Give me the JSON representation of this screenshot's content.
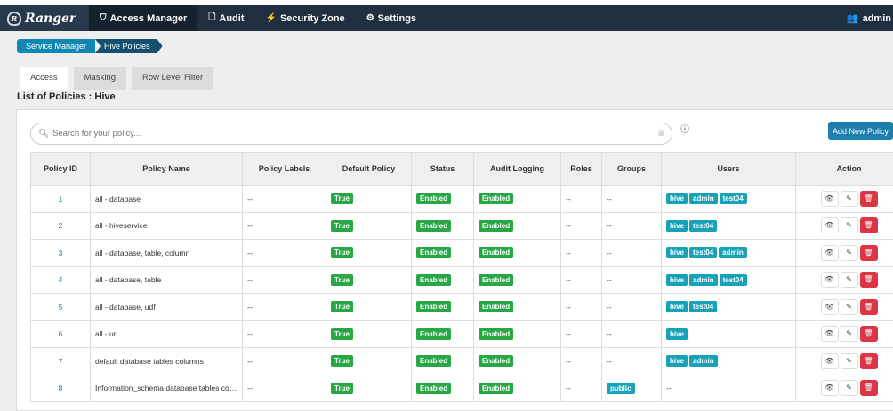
{
  "nav": {
    "brand": "Ranger",
    "items": [
      {
        "label": "Access Manager",
        "icon": "shield-icon",
        "active": true
      },
      {
        "label": "Audit",
        "icon": "file-icon"
      },
      {
        "label": "Security Zone",
        "icon": "bolt-icon"
      },
      {
        "label": "Settings",
        "icon": "gear-icon"
      }
    ],
    "user": "admin"
  },
  "breadcrumb": [
    "Service Manager",
    "Hive Policies"
  ],
  "tabs": [
    "Access",
    "Masking",
    "Row Level Filter"
  ],
  "page_title": "List of Policies : Hive",
  "search": {
    "placeholder": "Search for your policy..."
  },
  "add_button": "Add New Policy",
  "columns": [
    "Policy ID",
    "Policy Name",
    "Policy Labels",
    "Default Policy",
    "Status",
    "Audit Logging",
    "Roles",
    "Groups",
    "Users",
    "Action"
  ],
  "rows": [
    {
      "id": "1",
      "name": "all - database",
      "labels": "--",
      "default": "True",
      "status": "Enabled",
      "audit": "Enabled",
      "roles": "--",
      "groups": [],
      "users": [
        "hive",
        "admin",
        "test04"
      ]
    },
    {
      "id": "2",
      "name": "all - hiveservice",
      "labels": "--",
      "default": "True",
      "status": "Enabled",
      "audit": "Enabled",
      "roles": "--",
      "groups": [],
      "users": [
        "hive",
        "test04"
      ]
    },
    {
      "id": "3",
      "name": "all - database, table, column",
      "labels": "--",
      "default": "True",
      "status": "Enabled",
      "audit": "Enabled",
      "roles": "--",
      "groups": [],
      "users": [
        "hive",
        "test04",
        "admin"
      ]
    },
    {
      "id": "4",
      "name": "all - database, table",
      "labels": "--",
      "default": "True",
      "status": "Enabled",
      "audit": "Enabled",
      "roles": "--",
      "groups": [],
      "users": [
        "hive",
        "admin",
        "test04"
      ]
    },
    {
      "id": "5",
      "name": "all - database, udf",
      "labels": "--",
      "default": "True",
      "status": "Enabled",
      "audit": "Enabled",
      "roles": "--",
      "groups": [],
      "users": [
        "hive",
        "test04"
      ]
    },
    {
      "id": "6",
      "name": "all - url",
      "labels": "--",
      "default": "True",
      "status": "Enabled",
      "audit": "Enabled",
      "roles": "--",
      "groups": [],
      "users": [
        "hive"
      ]
    },
    {
      "id": "7",
      "name": "default database tables columns",
      "labels": "--",
      "default": "True",
      "status": "Enabled",
      "audit": "Enabled",
      "roles": "--",
      "groups": [],
      "users": [
        "hive",
        "admin"
      ]
    },
    {
      "id": "8",
      "name": "Information_schema database tables columns",
      "labels": "--",
      "default": "True",
      "status": "Enabled",
      "audit": "Enabled",
      "roles": "--",
      "groups": [
        "public"
      ],
      "users": []
    }
  ],
  "empty": "--",
  "colors": {
    "nav": "#1f2f3f",
    "primary": "#1d7fae",
    "success": "#28a745",
    "info": "#17a2b8",
    "danger": "#dc3545"
  }
}
